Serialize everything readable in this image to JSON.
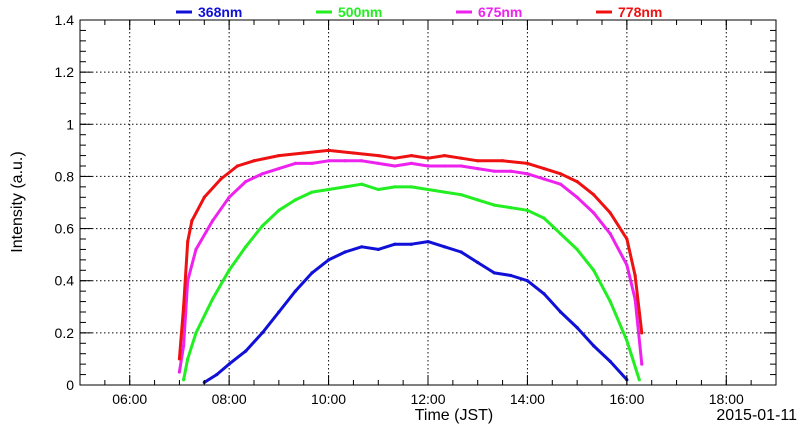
{
  "chart_data": {
    "type": "line",
    "xlabel": "Time (JST)",
    "ylabel": "Intensity (a.u.)",
    "date_label": "2015-01-11",
    "xlim": [
      "05:00",
      "19:00"
    ],
    "ylim": [
      0,
      1.4
    ],
    "grid": true,
    "legend_position": "top",
    "x_ticks": [
      "06:00",
      "08:00",
      "10:00",
      "12:00",
      "14:00",
      "16:00",
      "18:00"
    ],
    "y_ticks": [
      "0",
      "0.2",
      "0.4",
      "0.6",
      "0.8",
      "1",
      "1.2",
      "1.4"
    ],
    "series": [
      {
        "name": "368nm",
        "color": "#1010d8",
        "x": [
          "07:30",
          "07:45",
          "08:00",
          "08:20",
          "08:40",
          "09:00",
          "09:20",
          "09:40",
          "10:00",
          "10:20",
          "10:40",
          "11:00",
          "11:20",
          "11:40",
          "12:00",
          "12:20",
          "12:40",
          "13:00",
          "13:20",
          "13:40",
          "14:00",
          "14:20",
          "14:40",
          "15:00",
          "15:20",
          "15:40",
          "16:00"
        ],
        "y": [
          0.01,
          0.04,
          0.08,
          0.13,
          0.2,
          0.28,
          0.36,
          0.43,
          0.48,
          0.51,
          0.53,
          0.52,
          0.54,
          0.54,
          0.55,
          0.53,
          0.51,
          0.47,
          0.43,
          0.42,
          0.4,
          0.35,
          0.28,
          0.22,
          0.15,
          0.09,
          0.02
        ]
      },
      {
        "name": "500nm",
        "color": "#22ee22",
        "x": [
          "07:05",
          "07:10",
          "07:20",
          "07:40",
          "08:00",
          "08:20",
          "08:40",
          "09:00",
          "09:20",
          "09:40",
          "10:00",
          "10:20",
          "10:40",
          "11:00",
          "11:20",
          "11:40",
          "12:00",
          "12:20",
          "12:40",
          "13:00",
          "13:20",
          "13:40",
          "14:00",
          "14:20",
          "14:40",
          "15:00",
          "15:20",
          "15:40",
          "16:00",
          "16:15"
        ],
        "y": [
          0.02,
          0.1,
          0.2,
          0.33,
          0.44,
          0.53,
          0.61,
          0.67,
          0.71,
          0.74,
          0.75,
          0.76,
          0.77,
          0.75,
          0.76,
          0.76,
          0.75,
          0.74,
          0.73,
          0.71,
          0.69,
          0.68,
          0.67,
          0.64,
          0.58,
          0.52,
          0.44,
          0.32,
          0.17,
          0.02
        ]
      },
      {
        "name": "675nm",
        "color": "#ee22ee",
        "x": [
          "07:00",
          "07:05",
          "07:10",
          "07:20",
          "07:40",
          "08:00",
          "08:20",
          "08:40",
          "09:00",
          "09:20",
          "09:40",
          "10:00",
          "10:20",
          "10:40",
          "11:00",
          "11:20",
          "11:40",
          "12:00",
          "12:20",
          "12:40",
          "13:00",
          "13:20",
          "13:40",
          "14:00",
          "14:20",
          "14:40",
          "15:00",
          "15:20",
          "15:40",
          "16:00",
          "16:10",
          "16:18"
        ],
        "y": [
          0.05,
          0.15,
          0.4,
          0.52,
          0.63,
          0.72,
          0.78,
          0.81,
          0.83,
          0.85,
          0.85,
          0.86,
          0.86,
          0.86,
          0.85,
          0.84,
          0.85,
          0.84,
          0.84,
          0.84,
          0.83,
          0.82,
          0.82,
          0.81,
          0.79,
          0.77,
          0.72,
          0.66,
          0.58,
          0.46,
          0.33,
          0.08
        ]
      },
      {
        "name": "778nm",
        "color": "#ee1111",
        "x": [
          "07:00",
          "07:05",
          "07:10",
          "07:15",
          "07:30",
          "07:50",
          "08:10",
          "08:30",
          "09:00",
          "09:30",
          "10:00",
          "10:30",
          "11:00",
          "11:20",
          "11:40",
          "12:00",
          "12:20",
          "12:40",
          "13:00",
          "13:30",
          "14:00",
          "14:20",
          "14:40",
          "15:00",
          "15:20",
          "15:40",
          "16:00",
          "16:10",
          "16:18"
        ],
        "y": [
          0.1,
          0.3,
          0.55,
          0.63,
          0.72,
          0.79,
          0.84,
          0.86,
          0.88,
          0.89,
          0.9,
          0.89,
          0.88,
          0.87,
          0.88,
          0.87,
          0.88,
          0.87,
          0.86,
          0.86,
          0.85,
          0.83,
          0.81,
          0.78,
          0.73,
          0.66,
          0.56,
          0.42,
          0.2
        ]
      }
    ]
  }
}
